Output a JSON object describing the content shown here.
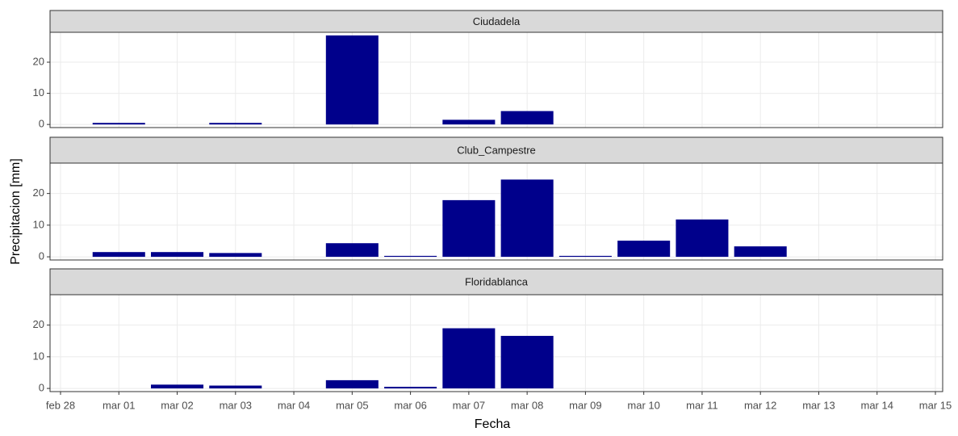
{
  "chart_data": {
    "type": "bar",
    "xlabel": "Fecha",
    "ylabel": "Precipitacion [mm]",
    "categories": [
      "feb 28",
      "mar 01",
      "mar 02",
      "mar 03",
      "mar 04",
      "mar 05",
      "mar 06",
      "mar 07",
      "mar 08",
      "mar 09",
      "mar 10",
      "mar 11",
      "mar 12",
      "mar 13",
      "mar 14",
      "mar 15"
    ],
    "ylim": [
      -1,
      29.6
    ],
    "yticks": [
      0,
      10,
      20
    ],
    "grid": true,
    "series": [
      {
        "name": "Ciudadela",
        "color": "#00008b",
        "values": [
          null,
          0.5,
          0,
          0.5,
          0,
          28.6,
          0,
          1.5,
          4.3,
          0,
          0,
          0,
          0,
          null,
          null,
          null
        ]
      },
      {
        "name": "Club_Campestre",
        "color": "#00008b",
        "values": [
          null,
          1.5,
          1.5,
          1.2,
          0,
          4.3,
          0.3,
          17.9,
          24.4,
          0.3,
          5.1,
          11.8,
          3.3,
          null,
          null,
          null
        ]
      },
      {
        "name": "Floridablanca",
        "color": "#00008b",
        "values": [
          null,
          0,
          1.2,
          0.9,
          0,
          2.6,
          0.5,
          19.0,
          16.6,
          0,
          0,
          0,
          0,
          null,
          null,
          null
        ]
      }
    ]
  }
}
